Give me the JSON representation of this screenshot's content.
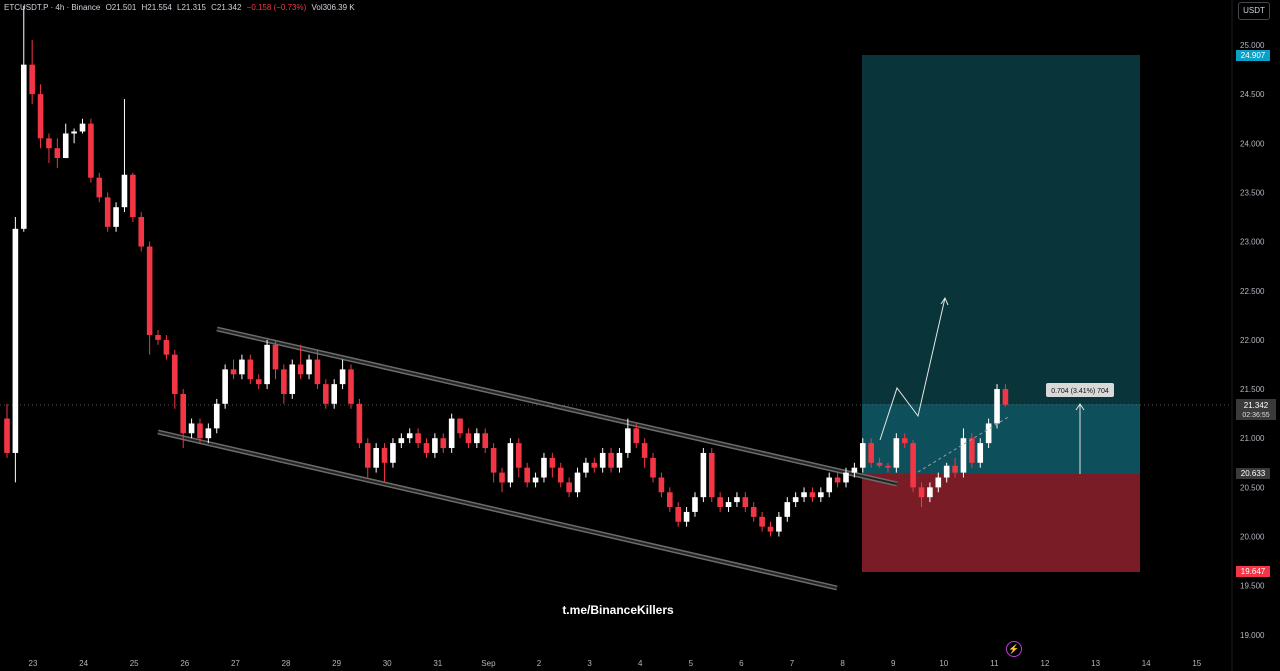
{
  "header": {
    "symbol": "ETCUSDT.P · 4h · Binance",
    "open": "O21.501",
    "high": "H21.554",
    "low": "L21.315",
    "close": "C21.342",
    "change": "−0.158 (−0.73%)",
    "volume": "Vol306.39 K"
  },
  "currency_button": "USDT",
  "watermark": "t.me/BinanceKillers",
  "price_labels": {
    "target": "24.907",
    "current": "21.342",
    "countdown": "02:36:55",
    "entry": "20.633",
    "stop": "19.647"
  },
  "measure_label": "0.704 (3.41%) 704",
  "colors": {
    "up": "#ffffff",
    "down": "#f23645",
    "target_zone": "#08343a",
    "target_zone_near": "#0d4f5a",
    "stop_zone": "#7a1c25",
    "target_label": "#0aa1c9",
    "stop_label": "#f23645",
    "channel": "#6b6b6b"
  },
  "chart_data": {
    "type": "candlestick",
    "ylim": [
      18.9,
      25.4
    ],
    "y_ticks": [
      "19.000",
      "19.500",
      "20.000",
      "20.500",
      "21.000",
      "21.500",
      "22.000",
      "22.500",
      "23.000",
      "23.500",
      "24.000",
      "24.500",
      "25.000"
    ],
    "x_ticks": [
      "23",
      "24",
      "25",
      "26",
      "27",
      "28",
      "29",
      "30",
      "31",
      "Sep",
      "2",
      "3",
      "4",
      "5",
      "6",
      "7",
      "8",
      "9",
      "10",
      "11",
      "12",
      "13",
      "14",
      "15"
    ],
    "candles": [
      [
        21.2,
        20.85,
        21.35,
        20.8
      ],
      [
        20.85,
        23.13,
        23.25,
        20.55
      ],
      [
        23.13,
        24.8,
        25.4,
        23.1
      ],
      [
        24.8,
        24.5,
        25.05,
        24.4
      ],
      [
        24.5,
        24.05,
        24.6,
        23.95
      ],
      [
        24.05,
        23.95,
        24.1,
        23.8
      ],
      [
        23.95,
        23.85,
        24.05,
        23.75
      ],
      [
        23.85,
        24.1,
        24.2,
        23.85
      ],
      [
        24.1,
        24.12,
        24.15,
        24.0
      ],
      [
        24.12,
        24.2,
        24.25,
        24.1
      ],
      [
        24.2,
        23.65,
        24.25,
        23.6
      ],
      [
        23.65,
        23.45,
        23.7,
        23.4
      ],
      [
        23.45,
        23.15,
        23.5,
        23.1
      ],
      [
        23.15,
        23.35,
        23.4,
        23.1
      ],
      [
        23.35,
        23.68,
        24.45,
        23.3
      ],
      [
        23.68,
        23.25,
        23.7,
        23.2
      ],
      [
        23.25,
        22.95,
        23.3,
        22.9
      ],
      [
        22.95,
        22.05,
        23.0,
        21.85
      ],
      [
        22.05,
        22.0,
        22.1,
        21.95
      ],
      [
        22.0,
        21.85,
        22.05,
        21.8
      ],
      [
        21.85,
        21.45,
        21.9,
        21.3
      ],
      [
        21.45,
        21.05,
        21.5,
        20.9
      ],
      [
        21.05,
        21.15,
        21.2,
        21.0
      ],
      [
        21.15,
        21.0,
        21.2,
        20.95
      ],
      [
        21.0,
        21.1,
        21.15,
        20.95
      ],
      [
        21.1,
        21.35,
        21.4,
        21.05
      ],
      [
        21.35,
        21.7,
        21.75,
        21.3
      ],
      [
        21.7,
        21.65,
        21.8,
        21.6
      ],
      [
        21.65,
        21.8,
        21.85,
        21.6
      ],
      [
        21.8,
        21.6,
        21.85,
        21.55
      ],
      [
        21.6,
        21.55,
        21.65,
        21.5
      ],
      [
        21.55,
        21.95,
        22.0,
        21.5
      ],
      [
        21.95,
        21.7,
        22.0,
        21.6
      ],
      [
        21.7,
        21.45,
        21.75,
        21.35
      ],
      [
        21.45,
        21.75,
        21.8,
        21.4
      ],
      [
        21.75,
        21.65,
        21.95,
        21.6
      ],
      [
        21.65,
        21.8,
        21.85,
        21.6
      ],
      [
        21.8,
        21.55,
        21.9,
        21.5
      ],
      [
        21.55,
        21.35,
        21.6,
        21.3
      ],
      [
        21.35,
        21.55,
        21.6,
        21.3
      ],
      [
        21.55,
        21.7,
        21.8,
        21.5
      ],
      [
        21.7,
        21.35,
        21.75,
        21.3
      ],
      [
        21.35,
        20.95,
        21.4,
        20.9
      ],
      [
        20.95,
        20.7,
        21.0,
        20.6
      ],
      [
        20.7,
        20.9,
        20.95,
        20.65
      ],
      [
        20.9,
        20.75,
        20.95,
        20.55
      ],
      [
        20.75,
        20.95,
        21.0,
        20.7
      ],
      [
        20.95,
        21.0,
        21.05,
        20.9
      ],
      [
        21.0,
        21.05,
        21.1,
        20.95
      ],
      [
        21.05,
        20.95,
        21.1,
        20.9
      ],
      [
        20.95,
        20.85,
        21.0,
        20.8
      ],
      [
        20.85,
        21.0,
        21.05,
        20.8
      ],
      [
        21.0,
        20.9,
        21.05,
        20.85
      ],
      [
        20.9,
        21.2,
        21.25,
        20.85
      ],
      [
        21.2,
        21.05,
        21.2,
        21.0
      ],
      [
        21.05,
        20.95,
        21.1,
        20.9
      ],
      [
        20.95,
        21.05,
        21.1,
        20.9
      ],
      [
        21.05,
        20.9,
        21.1,
        20.85
      ],
      [
        20.9,
        20.65,
        20.95,
        20.55
      ],
      [
        20.65,
        20.55,
        20.7,
        20.45
      ],
      [
        20.55,
        20.95,
        21.0,
        20.5
      ],
      [
        20.95,
        20.7,
        21.0,
        20.6
      ],
      [
        20.7,
        20.55,
        20.75,
        20.5
      ],
      [
        20.55,
        20.6,
        20.65,
        20.5
      ],
      [
        20.6,
        20.8,
        20.85,
        20.55
      ],
      [
        20.8,
        20.7,
        20.85,
        20.6
      ],
      [
        20.7,
        20.55,
        20.75,
        20.5
      ],
      [
        20.55,
        20.45,
        20.6,
        20.4
      ],
      [
        20.45,
        20.65,
        20.7,
        20.4
      ],
      [
        20.65,
        20.75,
        20.8,
        20.6
      ],
      [
        20.75,
        20.7,
        20.8,
        20.65
      ],
      [
        20.7,
        20.85,
        20.9,
        20.65
      ],
      [
        20.85,
        20.7,
        20.9,
        20.65
      ],
      [
        20.7,
        20.85,
        20.9,
        20.65
      ],
      [
        20.85,
        21.1,
        21.2,
        20.8
      ],
      [
        21.1,
        20.95,
        21.15,
        20.9
      ],
      [
        20.95,
        20.8,
        21.0,
        20.7
      ],
      [
        20.8,
        20.6,
        20.85,
        20.55
      ],
      [
        20.6,
        20.45,
        20.65,
        20.4
      ],
      [
        20.45,
        20.3,
        20.5,
        20.25
      ],
      [
        20.3,
        20.15,
        20.35,
        20.1
      ],
      [
        20.15,
        20.25,
        20.3,
        20.1
      ],
      [
        20.25,
        20.4,
        20.45,
        20.2
      ],
      [
        20.4,
        20.85,
        20.9,
        20.35
      ],
      [
        20.85,
        20.4,
        20.9,
        20.35
      ],
      [
        20.4,
        20.3,
        20.45,
        20.25
      ],
      [
        20.3,
        20.35,
        20.4,
        20.25
      ],
      [
        20.35,
        20.4,
        20.45,
        20.3
      ],
      [
        20.4,
        20.3,
        20.45,
        20.25
      ],
      [
        20.3,
        20.2,
        20.35,
        20.15
      ],
      [
        20.2,
        20.1,
        20.25,
        20.05
      ],
      [
        20.1,
        20.05,
        20.15,
        20.0
      ],
      [
        20.05,
        20.2,
        20.25,
        20.0
      ],
      [
        20.2,
        20.35,
        20.4,
        20.15
      ],
      [
        20.35,
        20.4,
        20.45,
        20.3
      ],
      [
        20.4,
        20.45,
        20.5,
        20.35
      ],
      [
        20.45,
        20.4,
        20.5,
        20.35
      ],
      [
        20.4,
        20.45,
        20.5,
        20.35
      ],
      [
        20.45,
        20.6,
        20.65,
        20.4
      ],
      [
        20.6,
        20.55,
        20.65,
        20.5
      ],
      [
        20.55,
        20.65,
        20.7,
        20.5
      ],
      [
        20.65,
        20.7,
        20.75,
        20.6
      ],
      [
        20.7,
        20.95,
        21.0,
        20.65
      ],
      [
        20.95,
        20.75,
        21.0,
        20.7
      ],
      [
        20.75,
        20.72,
        20.8,
        20.7
      ],
      [
        20.72,
        20.7,
        20.75,
        20.65
      ],
      [
        20.7,
        21.0,
        21.05,
        20.65
      ],
      [
        21.0,
        20.95,
        21.05,
        20.9
      ],
      [
        20.95,
        20.5,
        20.98,
        20.45
      ],
      [
        20.5,
        20.4,
        20.55,
        20.3
      ],
      [
        20.4,
        20.5,
        20.55,
        20.35
      ],
      [
        20.5,
        20.6,
        20.65,
        20.45
      ],
      [
        20.6,
        20.72,
        20.75,
        20.55
      ],
      [
        20.72,
        20.65,
        20.8,
        20.6
      ],
      [
        20.65,
        21.0,
        21.1,
        20.6
      ],
      [
        21.0,
        20.75,
        21.05,
        20.7
      ],
      [
        20.75,
        20.95,
        21.0,
        20.7
      ],
      [
        20.95,
        21.15,
        21.2,
        20.9
      ],
      [
        21.15,
        21.5,
        21.55,
        21.1
      ],
      [
        21.5,
        21.34,
        21.55,
        21.32
      ]
    ],
    "target_price": 24.907,
    "entry_price": 20.633,
    "stop_price": 19.647,
    "current_price": 21.342
  }
}
